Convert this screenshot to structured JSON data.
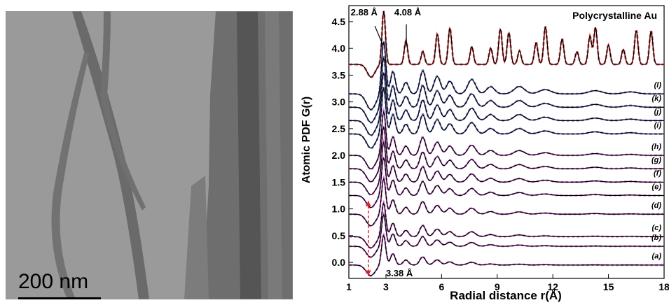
{
  "micrograph": {
    "scale_bar_label": "200 nm"
  },
  "chart_data": {
    "type": "line",
    "xlabel": "Radial distance r(Å)",
    "ylabel": "Atomic PDF G(r)",
    "xlim": [
      1,
      18
    ],
    "ylim": [
      -0.3,
      4.8
    ],
    "xticks": [
      "1",
      "3",
      "6",
      "9",
      "12",
      "15",
      "18"
    ],
    "yticks": [
      "0.0",
      "0.5",
      "1.0",
      "1.5",
      "2.0",
      "2.5",
      "3.0",
      "3.5",
      "4.0",
      "4.5"
    ],
    "reference": {
      "name": "Polycrystalline Au",
      "offset": 3.7
    },
    "curve_labels": [
      "(a)",
      "(b)",
      "(c)",
      "(d)",
      "(e)",
      "(f)",
      "(g)",
      "(h)",
      "(i)",
      "(j)",
      "(k)",
      "(l)"
    ],
    "offsets": [
      -0.05,
      0.3,
      0.48,
      0.9,
      1.25,
      1.5,
      1.75,
      2.0,
      2.4,
      2.65,
      2.9,
      3.15
    ],
    "annotations": [
      "2.88 Å",
      "4.08 Å",
      "3.38 Å"
    ],
    "colors": {
      "model": "#000000",
      "experiment_au": "#ff6a6a",
      "experiment_blue": "#7b84e6",
      "experiment_magenta": "#e46ee8",
      "arrow": "#e8202a"
    }
  }
}
